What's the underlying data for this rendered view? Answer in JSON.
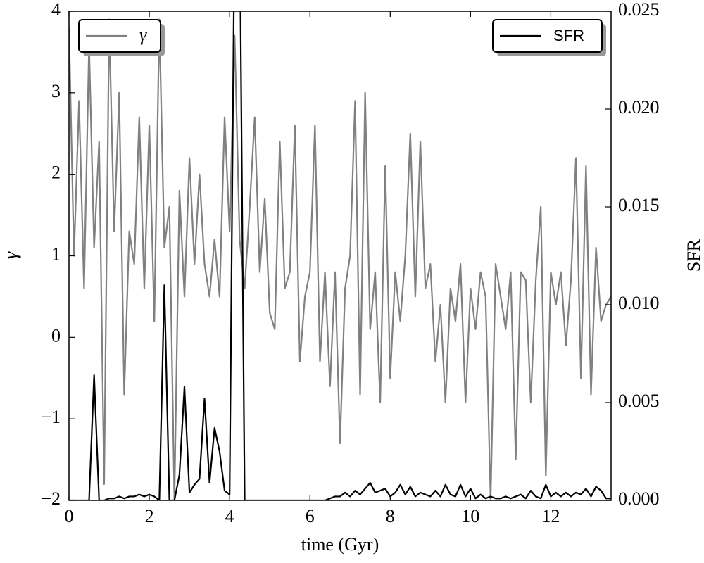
{
  "chart_data": {
    "type": "line",
    "xlabel": "time (Gyr)",
    "ylabel": "γ",
    "y2label": "SFR",
    "x": [
      0,
      0.125,
      0.25,
      0.375,
      0.5,
      0.625,
      0.75,
      0.875,
      1,
      1.125,
      1.25,
      1.375,
      1.5,
      1.625,
      1.75,
      1.875,
      2,
      2.125,
      2.25,
      2.375,
      2.5,
      2.625,
      2.75,
      2.875,
      3,
      3.125,
      3.25,
      3.375,
      3.5,
      3.625,
      3.75,
      3.875,
      4,
      4.125,
      4.25,
      4.375,
      4.5,
      4.625,
      4.75,
      4.875,
      5,
      5.125,
      5.25,
      5.375,
      5.5,
      5.625,
      5.75,
      5.875,
      6,
      6.125,
      6.25,
      6.375,
      6.5,
      6.625,
      6.75,
      6.875,
      7,
      7.125,
      7.25,
      7.375,
      7.5,
      7.625,
      7.75,
      7.875,
      8,
      8.125,
      8.25,
      8.375,
      8.5,
      8.625,
      8.75,
      8.875,
      9,
      9.125,
      9.25,
      9.375,
      9.5,
      9.625,
      9.75,
      9.875,
      10,
      10.125,
      10.25,
      10.375,
      10.5,
      10.625,
      10.75,
      10.875,
      11,
      11.125,
      11.25,
      11.375,
      11.5,
      11.625,
      11.75,
      11.875,
      12,
      12.125,
      12.25,
      12.375,
      12.5,
      12.625,
      12.75,
      12.875,
      13,
      13.125,
      13.25,
      13.375,
      13.5
    ],
    "series": [
      {
        "name": "γ",
        "color": "#808080",
        "axis": "y",
        "legend": "upper left",
        "values": [
          3.8,
          1.0,
          2.9,
          0.6,
          3.6,
          1.1,
          2.4,
          -1.8,
          3.9,
          1.3,
          3.0,
          -0.7,
          1.3,
          0.9,
          2.7,
          0.6,
          2.6,
          0.2,
          3.9,
          1.1,
          1.6,
          -2.0,
          1.8,
          0.5,
          2.2,
          0.9,
          2.0,
          0.9,
          0.5,
          1.2,
          0.5,
          2.7,
          1.3,
          3.7,
          1.2,
          0.6,
          1.6,
          2.7,
          0.8,
          1.7,
          0.3,
          0.1,
          2.4,
          0.6,
          0.8,
          2.6,
          -0.3,
          0.5,
          0.8,
          2.6,
          -0.3,
          0.8,
          -0.6,
          0.8,
          -1.3,
          0.6,
          1.0,
          2.9,
          -0.7,
          3.0,
          0.1,
          0.8,
          -0.8,
          2.1,
          -0.5,
          0.8,
          0.2,
          1.0,
          2.5,
          0.5,
          2.4,
          0.6,
          0.9,
          -0.3,
          0.4,
          -0.8,
          0.6,
          0.2,
          0.9,
          -0.8,
          0.6,
          0.1,
          0.8,
          0.5,
          -2.0,
          0.9,
          0.5,
          0.1,
          0.8,
          -1.5,
          0.8,
          0.7,
          -0.8,
          0.7,
          1.6,
          -1.7,
          0.8,
          0.4,
          0.8,
          -0.1,
          0.7,
          2.2,
          -0.5,
          2.1,
          -0.7,
          1.1,
          0.2,
          0.4,
          0.5
        ]
      },
      {
        "name": "SFR",
        "color": "#000000",
        "axis": "y2",
        "legend": "upper right",
        "values": [
          0,
          0,
          0,
          0,
          0,
          0.0064,
          0,
          0,
          0.0001,
          0.0001,
          0.0002,
          0.0001,
          0.0002,
          0.0002,
          0.0003,
          0.0002,
          0.0003,
          0.0002,
          0,
          0.011,
          0,
          0,
          0.0013,
          0.0058,
          0.0004,
          0.0008,
          0.0011,
          0.0052,
          0.0009,
          0.0037,
          0.0025,
          0.0005,
          0.0003,
          0.03,
          0.03,
          0,
          0,
          0,
          0,
          0,
          0,
          0,
          0,
          0,
          0,
          0,
          0,
          0,
          0,
          0,
          0,
          0,
          0.0001,
          0.0002,
          0.0002,
          0.0004,
          0.0002,
          0.0005,
          0.0003,
          0.0006,
          0.0009,
          0.0004,
          0.0005,
          0.0006,
          0.0002,
          0.0004,
          0.0008,
          0.0003,
          0.0007,
          0.0002,
          0.0004,
          0.0003,
          0.0002,
          0.0005,
          0.0002,
          0.0008,
          0.0003,
          0.0002,
          0.0008,
          0.0002,
          0.0006,
          0.0001,
          0.0003,
          0.0001,
          0.0002,
          0.0001,
          0.0001,
          0.0002,
          0.0001,
          0.0002,
          0.0003,
          0.0001,
          0.0005,
          0.0002,
          0.0001,
          0.0008,
          0.0002,
          0.0004,
          0.0002,
          0.0004,
          0.0002,
          0.0004,
          0.0003,
          0.0006,
          0.0002,
          0.0007,
          0.0005,
          0.0001,
          0.0001
        ]
      }
    ],
    "xlim": [
      0,
      13.5
    ],
    "xticks": [
      0,
      2,
      4,
      6,
      8,
      10,
      12
    ],
    "ylim": [
      -2,
      4
    ],
    "yticks": [
      {
        "value": -2,
        "label": "−2"
      },
      {
        "value": -1,
        "label": "−1"
      },
      0,
      1,
      2,
      3,
      4
    ],
    "y2lim": [
      0,
      0.025
    ],
    "y2ticks": [
      {
        "value": 0,
        "label": "0.000"
      },
      {
        "value": 0.005,
        "label": "0.005"
      },
      {
        "value": 0.01,
        "label": "0.010"
      },
      {
        "value": 0.015,
        "label": "0.015"
      },
      {
        "value": 0.02,
        "label": "0.020"
      },
      {
        "value": 0.025,
        "label": "0.025"
      }
    ]
  }
}
